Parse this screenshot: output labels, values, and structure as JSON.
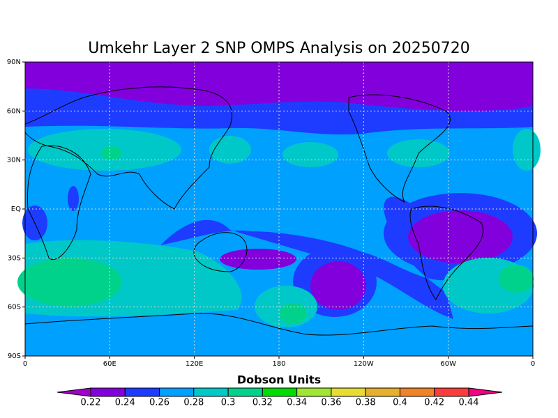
{
  "title": "Umkehr Layer 2 SNP OMPS Analysis on 20250720",
  "map": {
    "lon_labels": [
      "0",
      "60E",
      "120E",
      "180",
      "120W",
      "60W",
      "0"
    ],
    "lat_labels": [
      "90N",
      "60N",
      "30N",
      "EQ",
      "30S",
      "60S",
      "90S"
    ]
  },
  "colorbar": {
    "label": "Dobson Units",
    "ticks": [
      0.22,
      0.24,
      0.26,
      0.28,
      0.3,
      0.32,
      0.34,
      0.36,
      0.38,
      0.4,
      0.42,
      0.44
    ],
    "colors": [
      "#a000c8",
      "#8200dc",
      "#1e3cff",
      "#00a0ff",
      "#00c8c8",
      "#00d28c",
      "#00dc00",
      "#a0e632",
      "#e6dc32",
      "#e6af2d",
      "#f08228",
      "#fa3c3c",
      "#f00082"
    ]
  }
}
